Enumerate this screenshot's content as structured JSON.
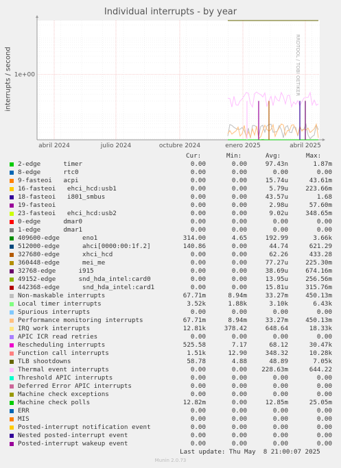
{
  "chart_data": {
    "type": "line",
    "title": "Individual interrupts - by year",
    "ylabel": "interrupts / second",
    "y_scale": "log",
    "yticks": [
      "1e+03",
      "1e+00",
      "1e-03"
    ],
    "xticks": [
      "abril 2024",
      "julio 2024",
      "octubre 2024",
      "enero 2025",
      "abril 2025"
    ],
    "grid": true,
    "columns": [
      "Cur:",
      "Min:",
      "Avg:",
      "Max:"
    ],
    "series": [
      {
        "name": "2-edge      timer",
        "color": "#00cc00",
        "cur": "0.00",
        "min": "0.00",
        "avg": "97.43n",
        "max": "1.87m"
      },
      {
        "name": "8-edge      rtc0",
        "color": "#0066b3",
        "cur": "0.00",
        "min": "0.00",
        "avg": "0.00",
        "max": "0.00"
      },
      {
        "name": "9-fasteoi   acpi",
        "color": "#ff8000",
        "cur": "0.00",
        "min": "0.00",
        "avg": "15.74u",
        "max": "43.61m"
      },
      {
        "name": "16-fasteoi   ehci_hcd:usb1",
        "color": "#ffcc00",
        "cur": "0.00",
        "min": "0.00",
        "avg": "5.79u",
        "max": "223.66m"
      },
      {
        "name": "18-fasteoi   i801_smbus",
        "color": "#330099",
        "cur": "0.00",
        "min": "0.00",
        "avg": "43.57u",
        "max": "1.68"
      },
      {
        "name": "19-fasteoi",
        "color": "#990099",
        "cur": "0.00",
        "min": "0.00",
        "avg": "2.98u",
        "max": "57.60m"
      },
      {
        "name": "23-fasteoi   ehci_hcd:usb2",
        "color": "#ccff00",
        "cur": "0.00",
        "min": "0.00",
        "avg": "9.02u",
        "max": "348.65m"
      },
      {
        "name": "0-edge      dmar0",
        "color": "#ff0000",
        "cur": "0.00",
        "min": "0.00",
        "avg": "0.00",
        "max": "0.00"
      },
      {
        "name": "1-edge      dmar1",
        "color": "#808080",
        "cur": "0.00",
        "min": "0.00",
        "avg": "0.00",
        "max": "0.00"
      },
      {
        "name": "409600-edge      eno1",
        "color": "#008f00",
        "cur": "314.00",
        "min": "4.65",
        "avg": "192.99",
        "max": "3.66k"
      },
      {
        "name": "512000-edge      ahci[0000:00:1f.2]",
        "color": "#00487d",
        "cur": "140.86",
        "min": "0.00",
        "avg": "44.74",
        "max": "621.29"
      },
      {
        "name": "327680-edge      xhci_hcd",
        "color": "#b35a00",
        "cur": "0.00",
        "min": "0.00",
        "avg": "62.26",
        "max": "433.28"
      },
      {
        "name": "360448-edge      mei_me",
        "color": "#b38f00",
        "cur": "0.00",
        "min": "0.00",
        "avg": "77.27u",
        "max": "225.30m"
      },
      {
        "name": "32768-edge      i915",
        "color": "#6b006b",
        "cur": "0.00",
        "min": "0.00",
        "avg": "38.69u",
        "max": "674.16m"
      },
      {
        "name": "49152-edge      snd_hda_intel:card0",
        "color": "#8fb300",
        "cur": "0.00",
        "min": "0.00",
        "avg": "13.95u",
        "max": "256.56m"
      },
      {
        "name": "442368-edge      snd_hda_intel:card1",
        "color": "#b30000",
        "cur": "0.00",
        "min": "0.00",
        "avg": "15.81u",
        "max": "315.76m"
      },
      {
        "name": "Non-maskable interrupts",
        "color": "#bebebe",
        "cur": "67.71m",
        "min": "8.94m",
        "avg": "33.27m",
        "max": "450.13m"
      },
      {
        "name": "Local timer interrupts",
        "color": "#80ff80",
        "cur": "3.52k",
        "min": "1.88k",
        "avg": "3.10k",
        "max": "6.43k"
      },
      {
        "name": "Spurious interrupts",
        "color": "#80c9ff",
        "cur": "0.00",
        "min": "0.00",
        "avg": "0.00",
        "max": "0.00"
      },
      {
        "name": "Performance monitoring interrupts",
        "color": "#ffc080",
        "cur": "67.71m",
        "min": "8.94m",
        "avg": "33.27m",
        "max": "450.13m"
      },
      {
        "name": "IRQ work interrupts",
        "color": "#ffe680",
        "cur": "12.81k",
        "min": "378.42",
        "avg": "648.64",
        "max": "18.33k"
      },
      {
        "name": "APIC ICR read retries",
        "color": "#aa80ff",
        "cur": "0.00",
        "min": "0.00",
        "avg": "0.00",
        "max": "0.00"
      },
      {
        "name": "Rescheduling interrupts",
        "color": "#ee00cc",
        "cur": "525.58",
        "min": "7.17",
        "avg": "68.12",
        "max": "30.47k"
      },
      {
        "name": "Function call interrupts",
        "color": "#ff8080",
        "cur": "1.51k",
        "min": "12.90",
        "avg": "348.32",
        "max": "10.28k"
      },
      {
        "name": "TLB shootdowns",
        "color": "#666600",
        "cur": "58.78",
        "min": "4.88",
        "avg": "48.89",
        "max": "7.05k"
      },
      {
        "name": "Thermal event interrupts",
        "color": "#ffbfff",
        "cur": "0.00",
        "min": "0.00",
        "avg": "228.63m",
        "max": "644.22"
      },
      {
        "name": "Threshold APIC interrupts",
        "color": "#00ffcc",
        "cur": "0.00",
        "min": "0.00",
        "avg": "0.00",
        "max": "0.00"
      },
      {
        "name": "Deferred Error APIC interrupts",
        "color": "#cc6699",
        "cur": "0.00",
        "min": "0.00",
        "avg": "0.00",
        "max": "0.00"
      },
      {
        "name": "Machine check exceptions",
        "color": "#999900",
        "cur": "0.00",
        "min": "0.00",
        "avg": "0.00",
        "max": "0.00"
      },
      {
        "name": "Machine check polls",
        "color": "#00cc00",
        "cur": "12.82m",
        "min": "0.00",
        "avg": "12.85m",
        "max": "25.05m"
      },
      {
        "name": "ERR",
        "color": "#0066b3",
        "cur": "0.00",
        "min": "0.00",
        "avg": "0.00",
        "max": "0.00"
      },
      {
        "name": "MIS",
        "color": "#ff8000",
        "cur": "0.00",
        "min": "0.00",
        "avg": "0.00",
        "max": "0.00"
      },
      {
        "name": "Posted-interrupt notification event",
        "color": "#ffcc00",
        "cur": "0.00",
        "min": "0.00",
        "avg": "0.00",
        "max": "0.00"
      },
      {
        "name": "Nested posted-interrupt event",
        "color": "#330099",
        "cur": "0.00",
        "min": "0.00",
        "avg": "0.00",
        "max": "0.00"
      },
      {
        "name": "Posted-interrupt wakeup event",
        "color": "#990099",
        "cur": "0.00",
        "min": "0.00",
        "avg": "0.00",
        "max": "0.00"
      }
    ]
  },
  "watermark": "RRDTOOL / TOBI OETIKER",
  "footer": "Last update: Thu May  8 21:00:07 2025",
  "munin_version": "Munin 2.0.73"
}
